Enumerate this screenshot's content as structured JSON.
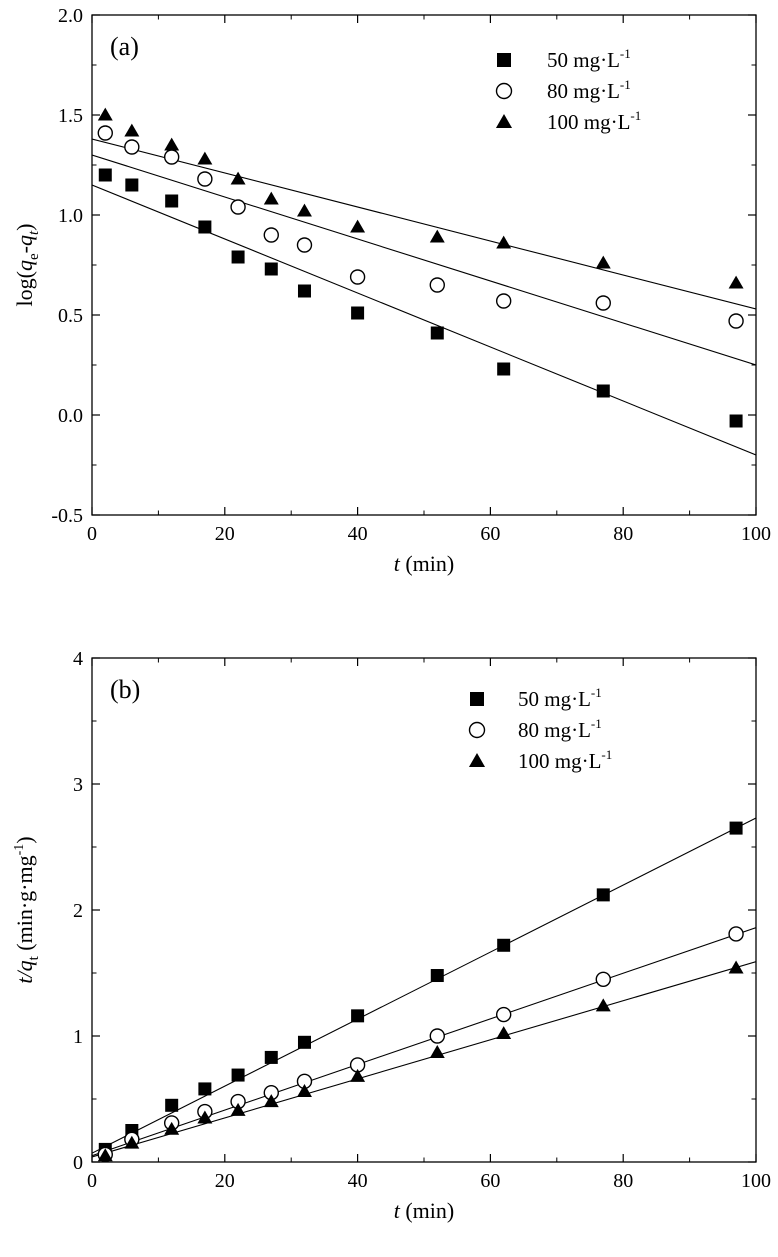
{
  "chart_data": [
    {
      "type": "scatter",
      "panel": "(a)",
      "xlabel": {
        "italic": "t",
        "rest": " (min)"
      },
      "ylabel": {
        "pre": "log(",
        "q1": "q",
        "sub1": "e",
        "mid": "-",
        "q2": "q",
        "sub2": "t",
        "post": ")"
      },
      "xlim": [
        0,
        100
      ],
      "ylim": [
        -0.5,
        2.0
      ],
      "xticks": [
        0,
        20,
        40,
        60,
        80,
        100
      ],
      "xtick_labels": [
        "0",
        "20",
        "40",
        "60",
        "80",
        "100"
      ],
      "yticks": [
        -0.5,
        0.0,
        0.5,
        1.0,
        1.5,
        2.0
      ],
      "ytick_labels": [
        "-0.5",
        "0.0",
        "0.5",
        "1.0",
        "1.5",
        "2.0"
      ],
      "legend_position": "top-right",
      "series": [
        {
          "name": "50 mg·L-1",
          "label_main": "50 mg·L",
          "label_sup": "-1",
          "marker": "square",
          "x": [
            2,
            6,
            12,
            17,
            22,
            27,
            32,
            40,
            52,
            62,
            77,
            97
          ],
          "y": [
            1.2,
            1.15,
            1.07,
            0.94,
            0.79,
            0.73,
            0.62,
            0.51,
            0.41,
            0.23,
            0.12,
            -0.03
          ],
          "fit": [
            0,
            1.15,
            100,
            -0.2
          ]
        },
        {
          "name": "80 mg·L-1",
          "label_main": "80 mg·L",
          "label_sup": "-1",
          "marker": "circle",
          "x": [
            2,
            6,
            12,
            17,
            22,
            27,
            32,
            40,
            52,
            62,
            77,
            97
          ],
          "y": [
            1.41,
            1.34,
            1.29,
            1.18,
            1.04,
            0.9,
            0.85,
            0.69,
            0.65,
            0.57,
            0.56,
            0.47
          ],
          "fit": [
            0,
            1.3,
            100,
            0.25
          ]
        },
        {
          "name": "100 mg·L-1",
          "label_main": "100 mg·L",
          "label_sup": "-1",
          "marker": "triangle",
          "x": [
            2,
            6,
            12,
            17,
            22,
            27,
            32,
            40,
            52,
            62,
            77,
            97
          ],
          "y": [
            1.5,
            1.42,
            1.35,
            1.28,
            1.18,
            1.08,
            1.02,
            0.94,
            0.89,
            0.86,
            0.76,
            0.66
          ],
          "fit": [
            0,
            1.38,
            100,
            0.53
          ]
        }
      ]
    },
    {
      "type": "scatter",
      "panel": "(b)",
      "xlabel": {
        "italic": "t",
        "rest": " (min)"
      },
      "ylabel": {
        "pre": "t/",
        "q1": "q",
        "sub1": "t",
        "mid": " (min·g·mg",
        "sup": "-1",
        "post": ")"
      },
      "xlim": [
        0,
        100
      ],
      "ylim": [
        0,
        4
      ],
      "xticks": [
        0,
        20,
        40,
        60,
        80,
        100
      ],
      "xtick_labels": [
        "0",
        "20",
        "40",
        "60",
        "80",
        "100"
      ],
      "yticks": [
        0,
        1,
        2,
        3,
        4
      ],
      "ytick_labels": [
        "0",
        "1",
        "2",
        "3",
        "4"
      ],
      "legend_position": "top-right",
      "series": [
        {
          "name": "50 mg·L-1",
          "label_main": "50 mg·L",
          "label_sup": "-1",
          "marker": "square",
          "x": [
            2,
            6,
            12,
            17,
            22,
            27,
            32,
            40,
            52,
            62,
            77,
            97
          ],
          "y": [
            0.1,
            0.25,
            0.45,
            0.58,
            0.69,
            0.83,
            0.95,
            1.16,
            1.48,
            1.72,
            2.12,
            2.65
          ],
          "fit": [
            0,
            0.07,
            100,
            2.73
          ]
        },
        {
          "name": "80 mg·L-1",
          "label_main": "80 mg·L",
          "label_sup": "-1",
          "marker": "circle",
          "x": [
            2,
            6,
            12,
            17,
            22,
            27,
            32,
            40,
            52,
            62,
            77,
            97
          ],
          "y": [
            0.06,
            0.18,
            0.31,
            0.4,
            0.48,
            0.55,
            0.64,
            0.77,
            1.0,
            1.17,
            1.45,
            1.81
          ],
          "fit": [
            0,
            0.05,
            100,
            1.86
          ]
        },
        {
          "name": "100 mg·L-1",
          "label_main": "100 mg·L",
          "label_sup": "-1",
          "marker": "triangle",
          "x": [
            2,
            6,
            12,
            17,
            22,
            27,
            32,
            40,
            52,
            62,
            77,
            97
          ],
          "y": [
            0.05,
            0.15,
            0.26,
            0.35,
            0.41,
            0.48,
            0.56,
            0.68,
            0.87,
            1.02,
            1.24,
            1.54
          ],
          "fit": [
            0,
            0.04,
            100,
            1.59
          ]
        }
      ]
    }
  ]
}
